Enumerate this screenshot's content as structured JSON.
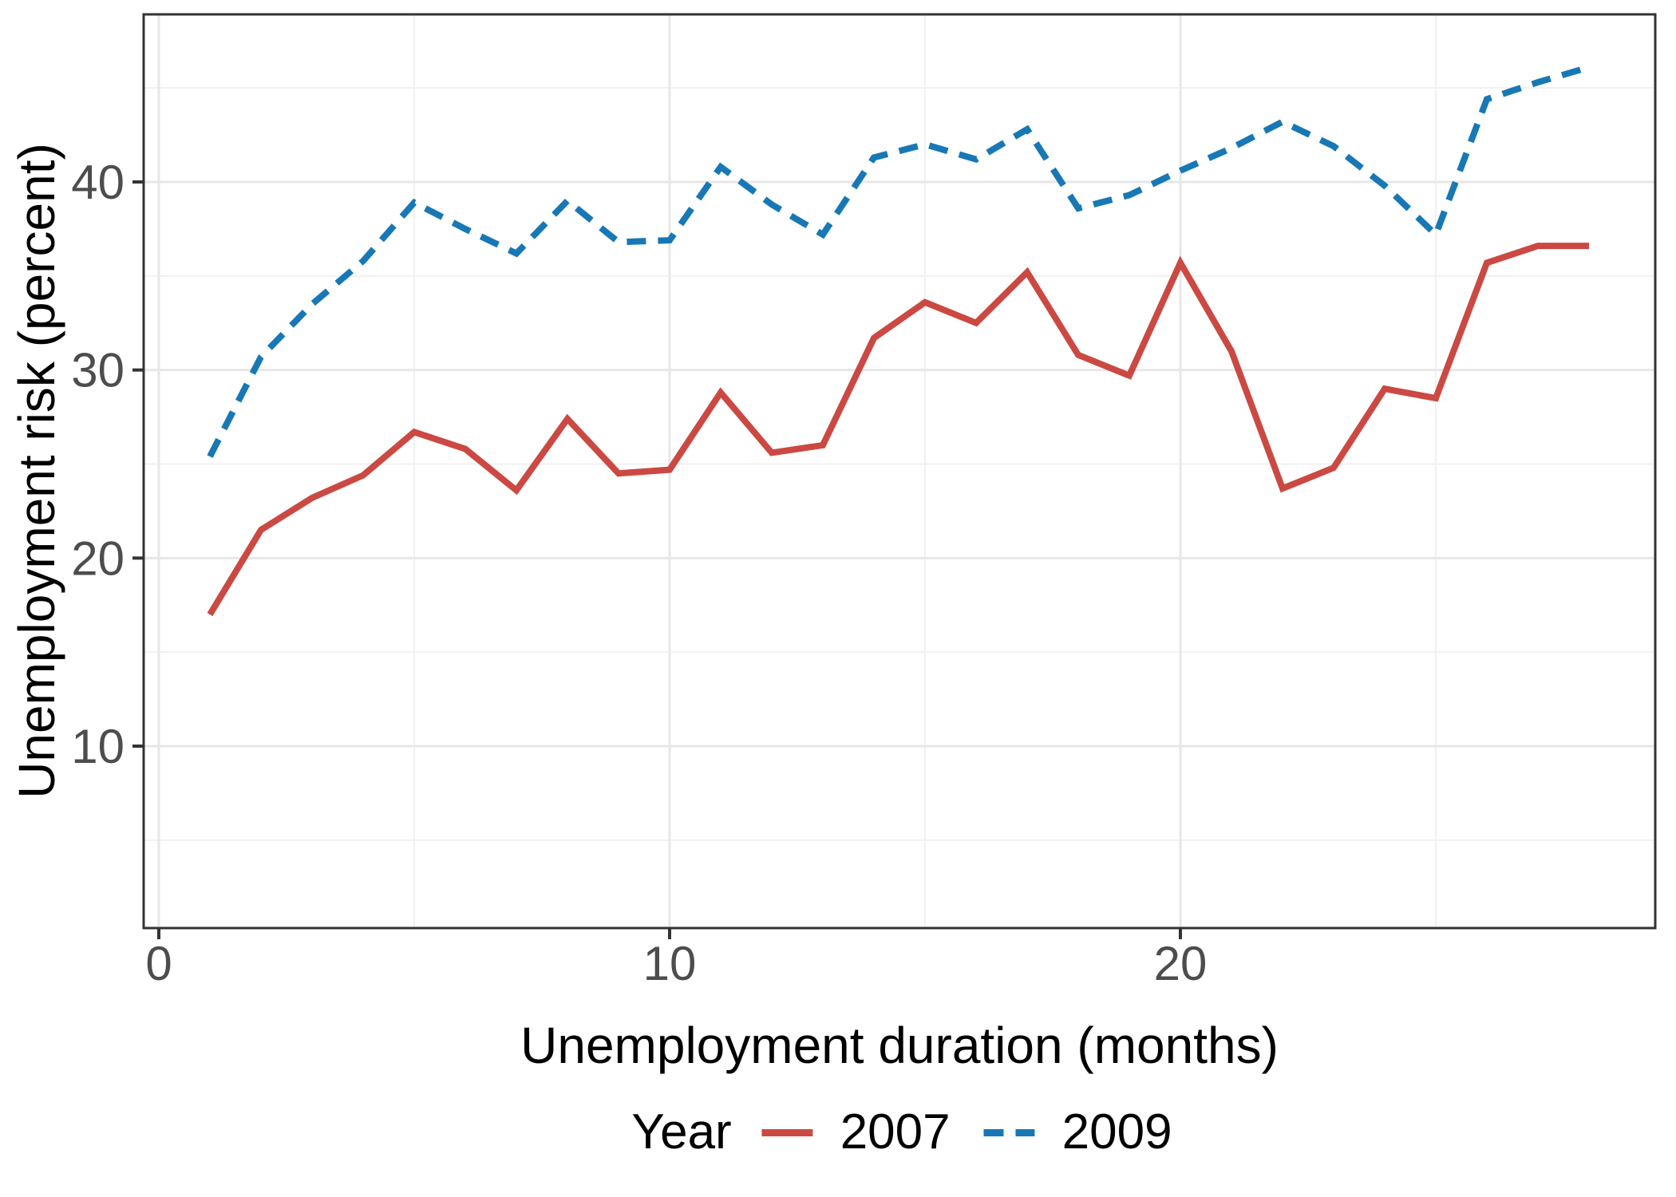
{
  "chart_data": {
    "type": "line",
    "title": "",
    "xlabel": "Unemployment duration (months)",
    "ylabel": "Unemployment risk (percent)",
    "x": [
      1,
      2,
      3,
      4,
      5,
      6,
      7,
      8,
      9,
      10,
      11,
      12,
      13,
      14,
      15,
      16,
      17,
      18,
      19,
      20,
      21,
      22,
      23,
      24,
      25,
      26,
      27,
      28
    ],
    "series": [
      {
        "name": "2007",
        "color": "#CB4942",
        "style": "solid",
        "values": [
          17.0,
          21.5,
          23.2,
          24.4,
          26.7,
          25.8,
          23.6,
          27.4,
          24.5,
          24.7,
          28.8,
          25.6,
          26.0,
          31.7,
          33.6,
          32.5,
          35.2,
          30.8,
          29.7,
          35.7,
          31.0,
          23.7,
          24.8,
          29.0,
          28.5,
          35.7,
          36.6,
          36.6
        ]
      },
      {
        "name": "2009",
        "color": "#1778B5",
        "style": "dashed",
        "values": [
          25.4,
          30.7,
          33.5,
          35.8,
          38.9,
          37.5,
          36.2,
          39.0,
          36.8,
          36.9,
          40.8,
          38.8,
          37.2,
          41.3,
          42.0,
          41.2,
          42.8,
          38.6,
          39.3,
          40.6,
          41.8,
          43.2,
          41.9,
          39.8,
          37.2,
          44.4,
          45.3,
          46.1
        ]
      }
    ],
    "x_ticks": [
      0,
      10,
      20
    ],
    "x_tick_labels": [
      "0",
      "10",
      "20"
    ],
    "x_minor_ticks": [
      5,
      15,
      25
    ],
    "y_ticks": [
      10,
      20,
      30,
      40
    ],
    "y_tick_labels": [
      "10",
      "20",
      "30",
      "40"
    ],
    "y_minor_ticks": [
      5,
      15,
      25,
      35,
      45
    ],
    "xlim": [
      -0.3,
      29.3
    ],
    "ylim": [
      0.3,
      48.9
    ],
    "grid": true,
    "legend_title": "Year",
    "legend_position": "bottom",
    "colors": {
      "series_2007": "#CB4942",
      "series_2009": "#1778B5",
      "grid_major": "#E7E7E7",
      "grid_minor": "#F1F1F1",
      "panel_border": "#333333",
      "tick_label": "#4D4D4D",
      "text": "#000000",
      "background": "#FFFFFF"
    }
  }
}
